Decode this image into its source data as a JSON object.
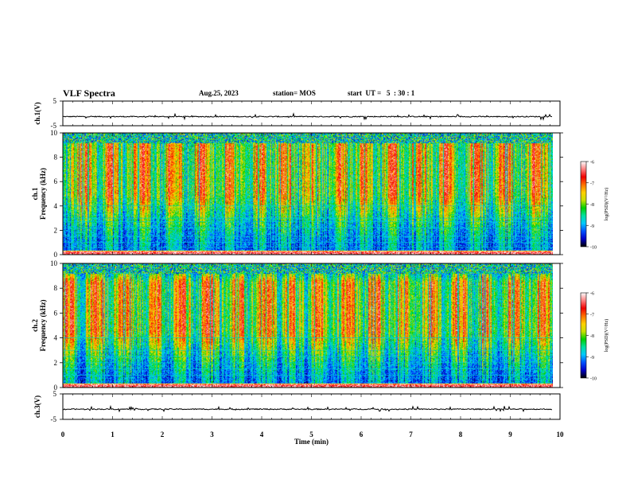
{
  "header": {
    "title": "VLF Spectra",
    "date": "Aug.25, 2023",
    "station": "station= MOS",
    "start": "start  UT =   5  : 30 : 1"
  },
  "chart_data": {
    "type": "heatmap",
    "xlabel": "Time  (min)",
    "x_ticks": [
      "0",
      "1",
      "2",
      "3",
      "4",
      "5",
      "6",
      "7",
      "8",
      "9",
      "10"
    ],
    "xlim": [
      0,
      10
    ],
    "data_end_min": 9.85,
    "panels": [
      {
        "id": "ch1-waveform",
        "type": "line",
        "ylabel": "ch.1(V)",
        "ylim": [
          -5,
          5
        ],
        "y_ticks": [
          "5",
          "-5"
        ],
        "trace_level_v": -1.3
      },
      {
        "id": "ch1-spectrogram",
        "type": "heatmap",
        "channel_label": "ch.1",
        "ylabel": "Frequency  (kHz)",
        "ylim": [
          0,
          10
        ],
        "y_ticks": [
          "0",
          "2",
          "4",
          "6",
          "8",
          "10"
        ],
        "noise_lines_khz": [
          0.3,
          0.6,
          1.0,
          1.5,
          2.2,
          2.7,
          3.0,
          4.0
        ],
        "intense_band_khz": [
          5.0,
          9.0
        ]
      },
      {
        "id": "ch2-spectrogram",
        "type": "heatmap",
        "channel_label": "ch.2",
        "ylabel": "Frequency  (kHz)",
        "ylim": [
          0,
          10
        ],
        "y_ticks": [
          "0",
          "2",
          "4",
          "6",
          "8",
          "10"
        ],
        "noise_lines_khz": [
          0.3,
          1.0,
          1.5,
          2.0,
          2.5,
          3.0,
          4.0
        ],
        "intense_band_khz": [
          4.5,
          8.5
        ]
      },
      {
        "id": "ch3-waveform",
        "type": "line",
        "ylabel": "ch.3(V)",
        "ylim": [
          -5,
          5
        ],
        "y_ticks": [
          "5",
          "-5"
        ],
        "trace_level_v": -1.0
      }
    ],
    "colorbar": {
      "label": "log(PSD)(V²/Hz)",
      "range": [
        -10,
        -6
      ],
      "ticks": [
        "-6",
        "-7",
        "-8",
        "-9",
        "-10"
      ],
      "colors": [
        "#000000",
        "#0000c8",
        "#0050ff",
        "#00c8ff",
        "#00e0a0",
        "#00d000",
        "#c8e000",
        "#ffd000",
        "#ff7000",
        "#f00000",
        "#ff8080",
        "#ffffff"
      ]
    }
  }
}
